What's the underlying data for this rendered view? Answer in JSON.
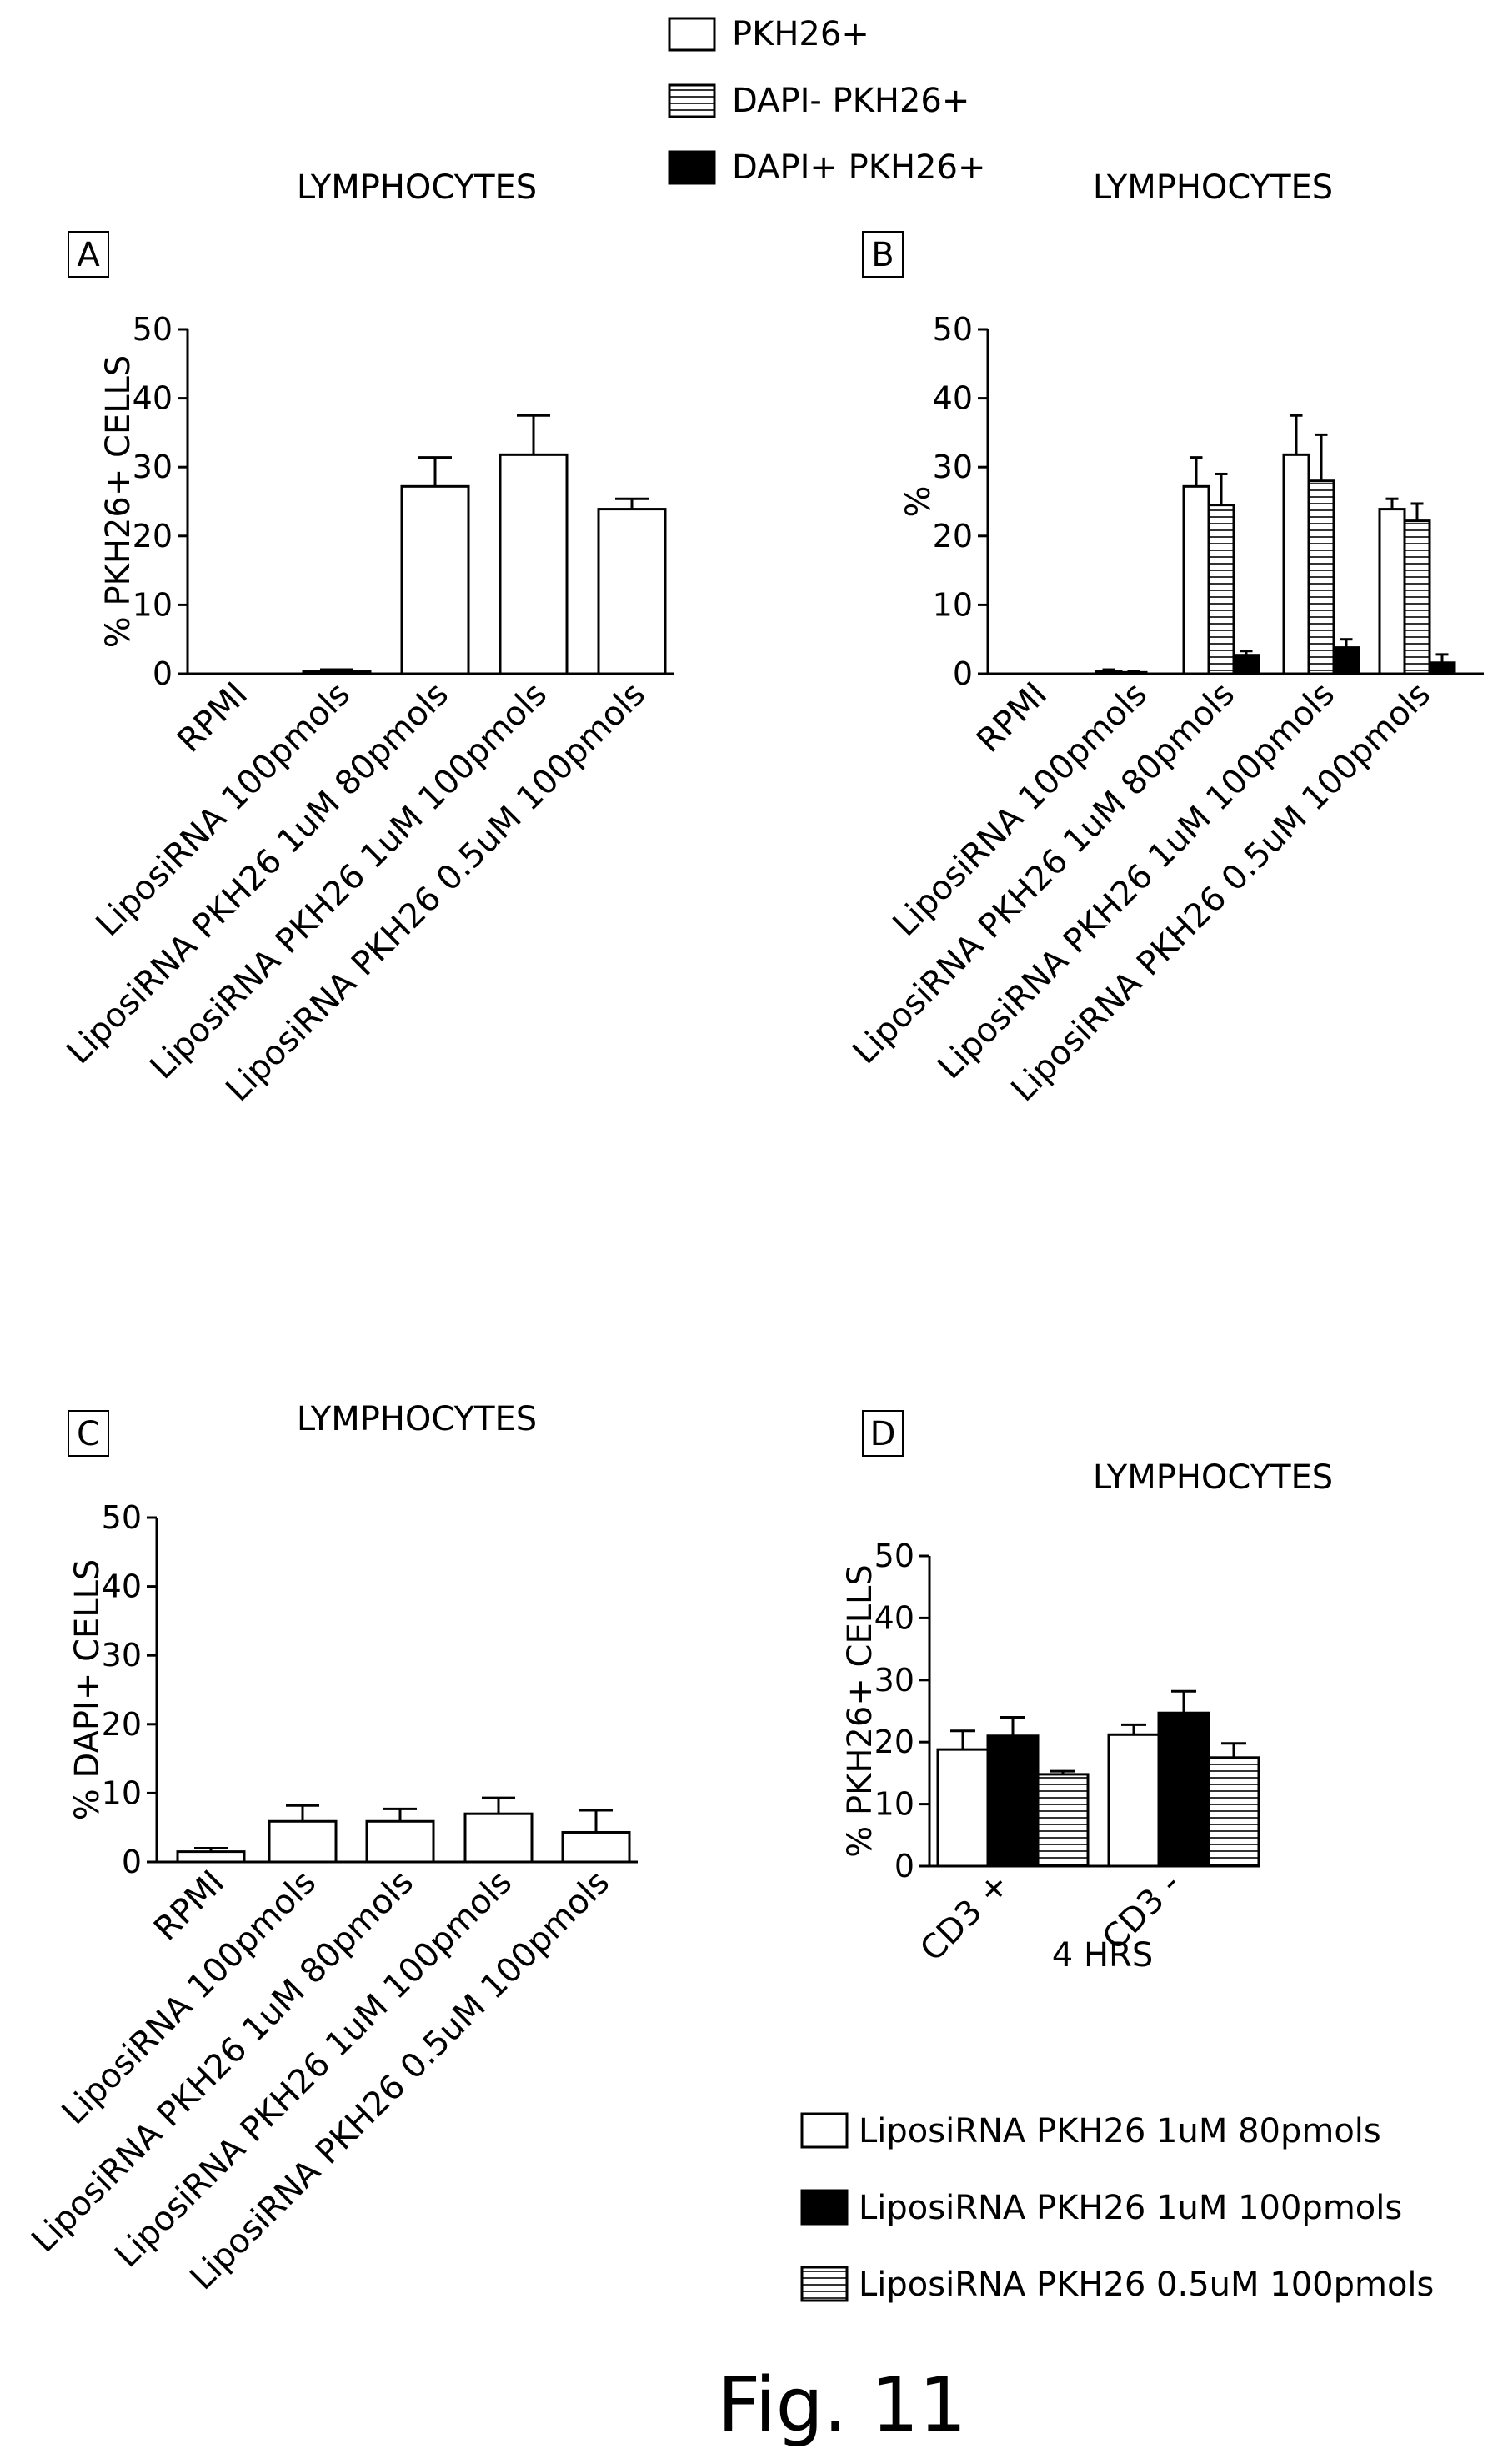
{
  "figure_caption": "Fig. 11",
  "top_legend": [
    {
      "label": "PKH26+",
      "fill": "white"
    },
    {
      "label": "DAPI- PKH26+",
      "fill": "hatch"
    },
    {
      "label": "DAPI+ PKH26+",
      "fill": "black"
    }
  ],
  "bottom_legend": [
    {
      "label": "LiposiRNA PKH26 1uM 80pmols",
      "fill": "white"
    },
    {
      "label": "LiposiRNA PKH26 1uM 100pmols",
      "fill": "black"
    },
    {
      "label": "LiposiRNA PKH26 0.5uM 100pmols",
      "fill": "hatch"
    }
  ],
  "colors": {
    "black": "#000000",
    "white": "#ffffff",
    "hatch_line": "#000000"
  },
  "chart_data": [
    {
      "panel": "A",
      "type": "bar",
      "title": "LYMPHOCYTES",
      "ylabel": "% PKH26+ CELLS",
      "xlabel": "",
      "ylim": [
        0,
        50
      ],
      "yticks": [
        0,
        10,
        20,
        30,
        40,
        50
      ],
      "categories": [
        "RPMI",
        "LiposiRNA 100pmols",
        "LiposiRNA PKH26 1uM 80pmols",
        "LiposiRNA PKH26 1uM 100pmols",
        "LiposiRNA PKH26 0.5uM 100pmols"
      ],
      "series": [
        {
          "fill": "white",
          "values": [
            0,
            0.3,
            27.2,
            31.8,
            23.9
          ],
          "errors": [
            0,
            0.3,
            4.2,
            5.7,
            1.5
          ]
        }
      ]
    },
    {
      "panel": "B",
      "type": "bar",
      "title": "LYMPHOCYTES",
      "ylabel": "%",
      "xlabel": "",
      "ylim": [
        0,
        50
      ],
      "yticks": [
        0,
        10,
        20,
        30,
        40,
        50
      ],
      "categories": [
        "RPMI",
        "LiposiRNA 100pmols",
        "LiposiRNA PKH26 1uM 80pmols",
        "LiposiRNA PKH26 1uM 100pmols",
        "LiposiRNA PKH26 0.5uM 100pmols"
      ],
      "series": [
        {
          "name": "PKH26+",
          "fill": "white",
          "values": [
            0,
            0.3,
            27.2,
            31.8,
            23.9
          ],
          "errors": [
            0,
            0.3,
            4.2,
            5.7,
            1.5
          ]
        },
        {
          "name": "DAPI- PKH26+",
          "fill": "hatch",
          "values": [
            0,
            0.2,
            24.5,
            28.0,
            22.2
          ],
          "errors": [
            0,
            0.2,
            4.5,
            6.7,
            2.5
          ]
        },
        {
          "name": "DAPI+ PKH26+",
          "fill": "black",
          "values": [
            0,
            0,
            2.7,
            3.8,
            1.6
          ],
          "errors": [
            0,
            0,
            0.6,
            1.2,
            1.2
          ]
        }
      ]
    },
    {
      "panel": "C",
      "type": "bar",
      "title": "LYMPHOCYTES",
      "ylabel": "% DAPI+ CELLS",
      "xlabel": "",
      "ylim": [
        0,
        50
      ],
      "yticks": [
        0,
        10,
        20,
        30,
        40,
        50
      ],
      "categories": [
        "RPMI",
        "LiposiRNA 100pmols",
        "LiposiRNA PKH26 1uM 80pmols",
        "LiposiRNA PKH26 1uM 100pmols",
        "LiposiRNA PKH26 0.5uM 100pmols"
      ],
      "series": [
        {
          "fill": "white",
          "values": [
            1.5,
            5.9,
            5.9,
            7.0,
            4.3
          ],
          "errors": [
            0.5,
            2.3,
            1.8,
            2.3,
            3.2
          ]
        }
      ]
    },
    {
      "panel": "D",
      "type": "bar",
      "title": "LYMPHOCYTES",
      "ylabel": "% PKH26+ CELLS",
      "xlabel": "4 HRS",
      "ylim": [
        0,
        50
      ],
      "yticks": [
        0,
        10,
        20,
        30,
        40,
        50
      ],
      "categories": [
        "CD3 +",
        "CD3 -"
      ],
      "series": [
        {
          "name": "LiposiRNA PKH26 1uM 80pmols",
          "fill": "white",
          "values": [
            18.8,
            21.2
          ],
          "errors": [
            3.0,
            1.6
          ]
        },
        {
          "name": "LiposiRNA PKH26 1uM 100pmols",
          "fill": "black",
          "values": [
            21.0,
            24.7
          ],
          "errors": [
            3.0,
            3.5
          ]
        },
        {
          "name": "LiposiRNA PKH26 0.5uM 100pmols",
          "fill": "hatch",
          "values": [
            14.8,
            17.5
          ],
          "errors": [
            0.5,
            2.3
          ]
        }
      ]
    }
  ]
}
